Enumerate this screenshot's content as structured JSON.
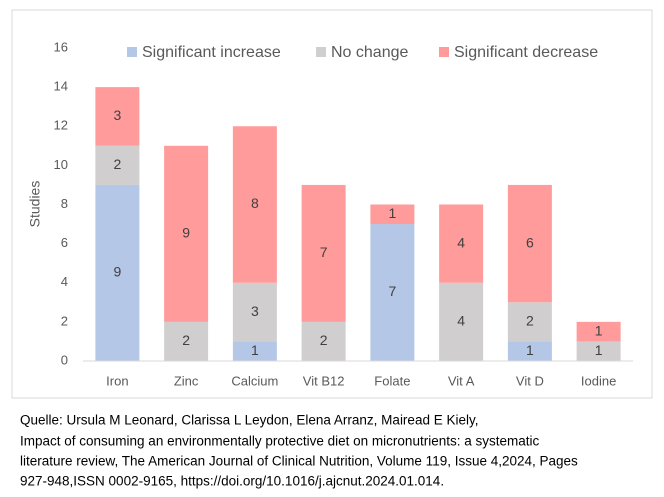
{
  "chart_data": {
    "type": "stacked_bar",
    "categories": [
      "Iron",
      "Zinc",
      "Calcium",
      "Vit B12",
      "Folate",
      "Vit A",
      "Vit D",
      "Iodine"
    ],
    "series": [
      {
        "name": "Significant increase",
        "color": "#b4c7e7",
        "values": [
          9,
          0,
          1,
          0,
          7,
          0,
          1,
          0
        ]
      },
      {
        "name": "No change",
        "color": "#d0cece",
        "values": [
          2,
          2,
          3,
          2,
          0,
          4,
          2,
          1
        ]
      },
      {
        "name": "Significant decrease",
        "color": "#ff9b9b",
        "values": [
          3,
          9,
          8,
          7,
          1,
          4,
          6,
          1
        ]
      }
    ],
    "y_label": "Studies",
    "ylim": [
      0,
      16
    ],
    "yticks": [
      0,
      2,
      4,
      6,
      8,
      10,
      12,
      14,
      16
    ],
    "grid": false,
    "legend": "top"
  },
  "caption": [
    "Quelle: Ursula M Leonard, Clarissa L Leydon, Elena Arranz, Mairead E Kiely,",
    "Impact of consuming an environmentally protective diet on micronutrients: a systematic",
    "literature review, The American Journal of Clinical Nutrition, Volume 119, Issue 4,2024, Pages",
    "927-948,ISSN 0002-9165, https://doi.org/10.1016/j.ajcnut.2024.01.014."
  ]
}
